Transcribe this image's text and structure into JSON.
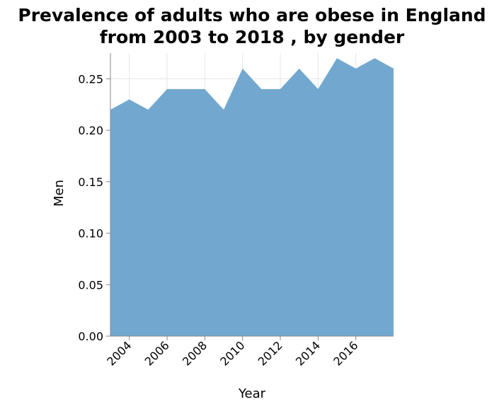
{
  "chart_data": {
    "type": "area",
    "title": [
      "Prevalence of adults who are obese in England",
      "from 2003 to 2018 , by gender"
    ],
    "xlabel": "Year",
    "ylabel": "Men",
    "x": [
      2003,
      2004,
      2005,
      2006,
      2007,
      2008,
      2009,
      2010,
      2011,
      2012,
      2013,
      2014,
      2015,
      2016,
      2017,
      2018
    ],
    "values": [
      0.22,
      0.23,
      0.22,
      0.24,
      0.24,
      0.24,
      0.22,
      0.26,
      0.24,
      0.24,
      0.26,
      0.24,
      0.27,
      0.26,
      0.27,
      0.26
    ],
    "xlim": [
      2003,
      2018
    ],
    "ylim": [
      0,
      0.275
    ],
    "xticks": [
      "2004",
      "2006",
      "2008",
      "2010",
      "2012",
      "2014",
      "2016"
    ],
    "yticks": [
      "0.00",
      "0.05",
      "0.10",
      "0.15",
      "0.20",
      "0.25"
    ],
    "grid": true,
    "colors": {
      "area": "#72a8cf",
      "grid": "#e6e6e6",
      "axis": "#888888"
    }
  }
}
